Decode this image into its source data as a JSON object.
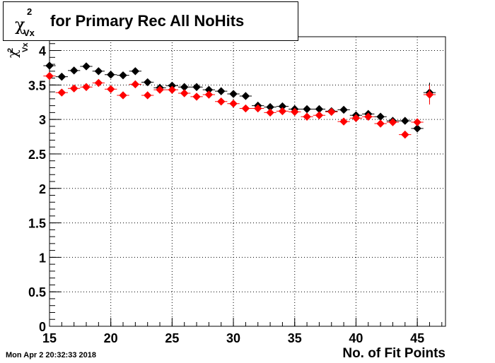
{
  "chart_data": {
    "type": "scatter",
    "title": "for Primary Rec All NoHits",
    "title_symbol": "χ",
    "title_superscript": "2",
    "title_subscript": "Vx",
    "ylabel_symbol": "χ",
    "ylabel_superscript": "2",
    "ylabel_subscript": "Vx",
    "xlabel": "No. of Fit Points",
    "xlim": [
      15,
      47.3
    ],
    "ylim": [
      0,
      4.2
    ],
    "grid": true,
    "x_ticks": [
      "15",
      "20",
      "25",
      "30",
      "35",
      "40",
      "45"
    ],
    "y_ticks": [
      "0",
      "0.5",
      "1",
      "1.5",
      "2",
      "2.5",
      "3",
      "3.5",
      "4"
    ],
    "series": [
      {
        "color": "#000000",
        "x": [
          15,
          16,
          17,
          18,
          19,
          20,
          21,
          22,
          23,
          24,
          25,
          26,
          27,
          28,
          29,
          30,
          31,
          32,
          33,
          34,
          35,
          36,
          37,
          38,
          39,
          40,
          41,
          42,
          43,
          44,
          45,
          46
        ],
        "y": [
          3.78,
          3.62,
          3.71,
          3.77,
          3.7,
          3.65,
          3.64,
          3.7,
          3.54,
          3.46,
          3.49,
          3.47,
          3.47,
          3.43,
          3.41,
          3.37,
          3.34,
          3.2,
          3.18,
          3.19,
          3.15,
          3.15,
          3.15,
          3.12,
          3.14,
          3.06,
          3.08,
          3.04,
          2.98,
          2.98,
          2.87,
          3.39
        ]
      },
      {
        "color": "#ff0000",
        "x": [
          15,
          16,
          17,
          18,
          19,
          20,
          21,
          22,
          23,
          24,
          25,
          26,
          27,
          28,
          29,
          30,
          31,
          32,
          33,
          34,
          35,
          36,
          37,
          38,
          39,
          40,
          41,
          42,
          43,
          44,
          45,
          46
        ],
        "y": [
          3.63,
          3.39,
          3.45,
          3.47,
          3.53,
          3.44,
          3.35,
          3.51,
          3.35,
          3.43,
          3.43,
          3.38,
          3.33,
          3.36,
          3.26,
          3.23,
          3.16,
          3.16,
          3.1,
          3.12,
          3.11,
          3.04,
          3.06,
          3.11,
          2.97,
          3.02,
          3.04,
          2.94,
          2.96,
          2.78,
          2.96,
          3.36
        ]
      }
    ]
  },
  "timestamp": "Mon Apr  2 20:32:33 2018"
}
